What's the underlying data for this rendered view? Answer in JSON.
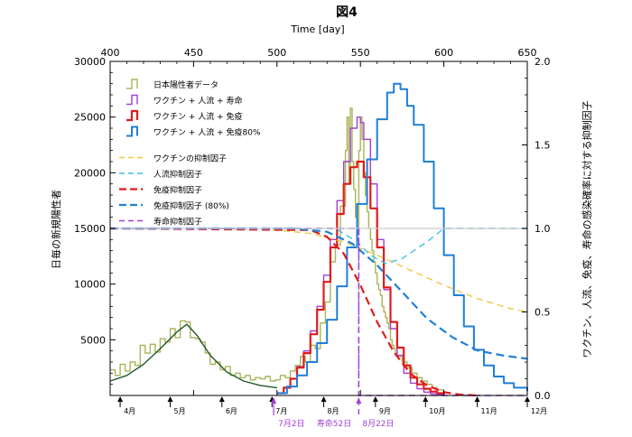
{
  "chart_data": {
    "type": "line",
    "title": "図4",
    "top_axis": {
      "label": "Time [day]",
      "range": [
        400,
        650
      ],
      "ticks": [
        400,
        450,
        500,
        550,
        600,
        650
      ]
    },
    "left_axis": {
      "label": "日毎の新規陽性者",
      "range": [
        0,
        30000
      ],
      "ticks": [
        5000,
        10000,
        15000,
        20000,
        25000,
        30000
      ]
    },
    "right_axis": {
      "label": "ワクチン、人流、免疫、寿命の感染確率に対する抑制因子",
      "range": [
        0,
        2.0
      ],
      "ticks": [
        "0.0",
        "0.5",
        "1.0",
        "1.5",
        "2.0"
      ]
    },
    "month_markers": [
      {
        "label": "4月",
        "day": 406
      },
      {
        "label": "5月",
        "day": 436
      },
      {
        "label": "6月",
        "day": 467
      },
      {
        "label": "7月",
        "day": 497
      },
      {
        "label": "8月",
        "day": 528
      },
      {
        "label": "9月",
        "day": 559
      },
      {
        "label": "10月",
        "day": 589
      },
      {
        "label": "11月",
        "day": 620
      },
      {
        "label": "12月",
        "day": 650
      }
    ],
    "annotations": [
      {
        "label": "7月2日",
        "day": 498,
        "color": "#a23fd6"
      },
      {
        "label": "寿命52日",
        "day": 520,
        "color": "#a23fd6"
      },
      {
        "label": "8月22日",
        "day": 549,
        "color": "#a23fd6"
      }
    ],
    "grid": false,
    "legend_position": "top-left",
    "series": [
      {
        "name": "日本陽性者データ",
        "style": "step",
        "color": "#aab45a",
        "width": 1.4,
        "axis": "left",
        "x": [
          400,
          403,
          406,
          409,
          412,
          415,
          418,
          421,
          424,
          427,
          430,
          433,
          436,
          439,
          442,
          445,
          448,
          451,
          454,
          457,
          460,
          463,
          466,
          469,
          472,
          475,
          478,
          481,
          484,
          487,
          490,
          493,
          496,
          499,
          502,
          505,
          508,
          511,
          514,
          517,
          520,
          523,
          526,
          529,
          532,
          535,
          538,
          541,
          542,
          543,
          544,
          545,
          546,
          547,
          548,
          549,
          550,
          551,
          552,
          553,
          554,
          555,
          556,
          557,
          558,
          559,
          560,
          561,
          562,
          563,
          564,
          565,
          566,
          567,
          568,
          569,
          570,
          571,
          572,
          575,
          578,
          581,
          584,
          587,
          590,
          593,
          596,
          600
        ],
        "y": [
          2300,
          1800,
          2800,
          2200,
          3000,
          2700,
          4500,
          3800,
          4600,
          3900,
          5100,
          4800,
          6000,
          5200,
          6700,
          6600,
          5200,
          5100,
          4800,
          3800,
          2800,
          3000,
          2300,
          2600,
          1800,
          2000,
          1600,
          1800,
          1400,
          1600,
          1500,
          1700,
          1300,
          1400,
          1800,
          1600,
          2200,
          2700,
          3500,
          3000,
          4500,
          4200,
          6500,
          8400,
          12000,
          13500,
          17000,
          22000,
          25000,
          19000,
          25800,
          21000,
          18500,
          16000,
          14500,
          22000,
          25000,
          23000,
          20000,
          18000,
          16500,
          15000,
          14000,
          13000,
          12000,
          11000,
          10000,
          9500,
          9000,
          8000,
          7500,
          7000,
          6500,
          6000,
          5000,
          4500,
          4200,
          3800,
          3500,
          3000,
          2500,
          2000,
          1600,
          1300,
          1000,
          700,
          500,
          300
        ]
      },
      {
        "name": "ワクチン + 人流 + 寿命",
        "style": "step",
        "color": "#a23fd6",
        "width": 1.4,
        "axis": "left",
        "x": [
          500,
          504,
          508,
          512,
          516,
          520,
          524,
          528,
          532,
          536,
          540,
          544,
          548,
          550,
          552,
          556,
          560,
          564,
          568,
          572,
          576,
          580,
          584,
          588,
          592,
          596,
          600
        ],
        "y": [
          200,
          700,
          1500,
          2600,
          4000,
          5800,
          8000,
          10800,
          14000,
          17500,
          21000,
          24000,
          25000,
          24500,
          23000,
          19000,
          14000,
          9500,
          6000,
          3600,
          2000,
          1100,
          600,
          300,
          150,
          80,
          40
        ]
      },
      {
        "name": "ワクチン + 人流 + 免疫",
        "style": "step",
        "color": "#e01b1b",
        "width": 2.2,
        "axis": "left",
        "x": [
          500,
          504,
          508,
          512,
          516,
          520,
          524,
          528,
          532,
          536,
          540,
          544,
          548,
          552,
          556,
          560,
          564,
          568,
          572,
          576,
          580,
          584,
          588,
          592,
          596,
          600
        ],
        "y": [
          200,
          700,
          1500,
          2500,
          3800,
          5500,
          7700,
          10200,
          13300,
          16300,
          19000,
          20500,
          21000,
          19600,
          16800,
          13300,
          9700,
          6600,
          4300,
          2700,
          1600,
          1000,
          600,
          350,
          200,
          100
        ]
      },
      {
        "name": "ワクチン + 人流 + 免疫80%",
        "style": "step",
        "color": "#1f7fd8",
        "width": 2.0,
        "axis": "left",
        "x": [
          500,
          506,
          512,
          518,
          524,
          530,
          536,
          542,
          548,
          554,
          560,
          566,
          570,
          574,
          578,
          582,
          588,
          594,
          600,
          606,
          612,
          618,
          624,
          630,
          636,
          642,
          650
        ],
        "y": [
          200,
          800,
          1800,
          3000,
          4700,
          6800,
          9800,
          13300,
          17200,
          21200,
          24800,
          27200,
          28000,
          27500,
          26000,
          24300,
          21000,
          16800,
          12600,
          9000,
          6200,
          4100,
          2700,
          1700,
          1100,
          700,
          400
        ]
      },
      {
        "name": "ワクチンの抑制因子",
        "style": "dashed",
        "color": "#f2c744",
        "width": 1.4,
        "axis": "right",
        "x": [
          400,
          460,
          500,
          520,
          540,
          560,
          580,
          600,
          620,
          640,
          650
        ],
        "y": [
          1.0,
          1.0,
          0.99,
          0.97,
          0.92,
          0.84,
          0.75,
          0.66,
          0.58,
          0.52,
          0.5
        ]
      },
      {
        "name": "人流抑制因子",
        "style": "dashed",
        "color": "#3fc0e0",
        "width": 1.4,
        "axis": "right",
        "x": [
          400,
          535,
          548,
          556,
          565,
          575,
          590,
          600,
          650
        ],
        "y": [
          1.0,
          1.0,
          0.92,
          0.84,
          0.79,
          0.82,
          0.92,
          1.0,
          1.0
        ]
      },
      {
        "name": "免疫抑制因子",
        "style": "dashed",
        "color": "#e01b1b",
        "width": 2.2,
        "axis": "right",
        "x": [
          400,
          520,
          530,
          540,
          550,
          560,
          570,
          580,
          590,
          600,
          610,
          620
        ],
        "y": [
          1.0,
          0.99,
          0.95,
          0.85,
          0.66,
          0.44,
          0.26,
          0.13,
          0.06,
          0.02,
          0.005,
          0.0
        ]
      },
      {
        "name": "免疫抑制因子 (80%)",
        "style": "dashed",
        "color": "#1f7fd8",
        "width": 2.2,
        "axis": "right",
        "x": [
          400,
          510,
          530,
          545,
          560,
          575,
          590,
          605,
          620,
          635,
          650
        ],
        "y": [
          1.0,
          1.0,
          0.98,
          0.91,
          0.78,
          0.62,
          0.46,
          0.35,
          0.27,
          0.24,
          0.22
        ]
      },
      {
        "name": "寿命抑制因子",
        "style": "dashed",
        "color": "#a23fd6",
        "width": 1.4,
        "axis": "right",
        "x": [
          400,
          548,
          549,
          549.01,
          650
        ],
        "y": [
          1.0,
          1.0,
          1.0,
          0.0,
          0.0
        ]
      },
      {
        "name": "",
        "style": "line",
        "color": "#1f5a2a",
        "width": 1.4,
        "axis": "left",
        "x": [
          400,
          410,
          420,
          430,
          440,
          446,
          452,
          460,
          470,
          480,
          490,
          500
        ],
        "y": [
          1300,
          1800,
          2800,
          4200,
          5700,
          6400,
          5400,
          3600,
          2100,
          1300,
          900,
          700
        ]
      },
      {
        "name": "",
        "style": "line",
        "color": "#cccccc",
        "width": 1.2,
        "axis": "left",
        "x": [
          400,
          650
        ],
        "y": [
          15000,
          15000
        ]
      }
    ]
  }
}
